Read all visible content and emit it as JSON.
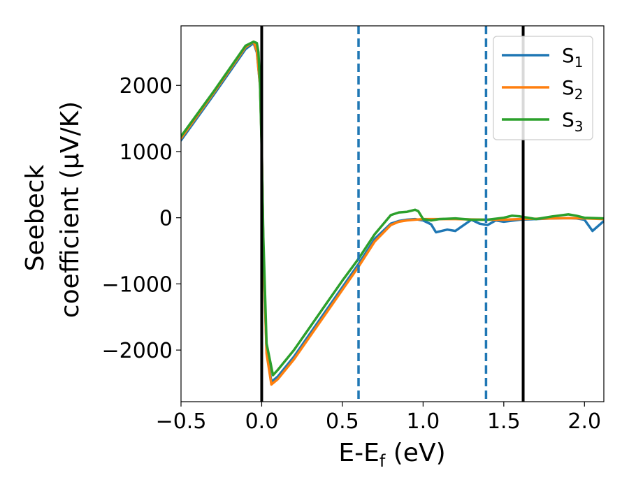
{
  "chart_data": {
    "type": "line",
    "xlabel": "E-E",
    "xlabel_sub": "f",
    "xlabel_unit": " (eV)",
    "ylabel_line1": "Seebeck",
    "ylabel_line2": "coefficient  (μV/K)",
    "xlim": [
      -0.5,
      2.12
    ],
    "ylim": [
      -2780,
      2900
    ],
    "xticks": [
      -0.5,
      0.0,
      0.5,
      1.0,
      1.5,
      2.0
    ],
    "xtick_labels": [
      "−0.5",
      "0.0",
      "0.5",
      "1.0",
      "1.5",
      "2.0"
    ],
    "yticks": [
      -2000,
      -1000,
      0,
      1000,
      2000
    ],
    "ytick_labels": [
      "−2000",
      "−1000",
      "0",
      "1000",
      "2000"
    ],
    "grid": false,
    "legend_position": "top-right",
    "vlines": [
      {
        "x": 0.0,
        "style": "solid",
        "color": "#000000"
      },
      {
        "x": 0.6,
        "style": "dashed",
        "color": "#1f77b4"
      },
      {
        "x": 1.39,
        "style": "dashed",
        "color": "#1f77b4"
      },
      {
        "x": 1.62,
        "style": "solid",
        "color": "#000000"
      }
    ],
    "series": [
      {
        "name": "S",
        "sub": "1",
        "color": "#1f77b4",
        "x": [
          -0.5,
          -0.3,
          -0.1,
          -0.05,
          -0.03,
          -0.01,
          0.0,
          0.01,
          0.03,
          0.06,
          0.1,
          0.2,
          0.3,
          0.4,
          0.5,
          0.6,
          0.7,
          0.8,
          0.85,
          0.9,
          0.95,
          1.0,
          1.05,
          1.08,
          1.15,
          1.2,
          1.3,
          1.35,
          1.4,
          1.45,
          1.5,
          1.6,
          1.7,
          1.8,
          1.9,
          1.95,
          2.0,
          2.05,
          2.12
        ],
        "y": [
          1170,
          1850,
          2550,
          2640,
          2500,
          2000,
          1100,
          -500,
          -2000,
          -2480,
          -2400,
          -2100,
          -1750,
          -1400,
          -1050,
          -700,
          -320,
          -90,
          -50,
          -30,
          -20,
          -40,
          -100,
          -220,
          -180,
          -200,
          -30,
          -90,
          -110,
          -40,
          -60,
          -30,
          -20,
          -10,
          -5,
          -10,
          -30,
          -200,
          -50
        ]
      },
      {
        "name": "S",
        "sub": "2",
        "color": "#ff7f0e",
        "x": [
          -0.5,
          -0.3,
          -0.1,
          -0.05,
          -0.03,
          -0.01,
          0.0,
          0.01,
          0.03,
          0.06,
          0.1,
          0.2,
          0.3,
          0.4,
          0.5,
          0.6,
          0.7,
          0.8,
          0.85,
          0.9,
          0.95,
          1.0,
          1.1,
          1.2,
          1.3,
          1.4,
          1.5,
          1.6,
          1.7,
          1.8,
          1.9,
          2.0,
          2.12
        ],
        "y": [
          1200,
          1880,
          2580,
          2660,
          2520,
          2000,
          1100,
          -500,
          -2050,
          -2520,
          -2440,
          -2140,
          -1790,
          -1440,
          -1090,
          -740,
          -360,
          -110,
          -60,
          -40,
          -30,
          -20,
          -20,
          -20,
          -25,
          -30,
          -30,
          -20,
          -15,
          -10,
          -5,
          -10,
          -20
        ]
      },
      {
        "name": "S",
        "sub": "3",
        "color": "#2ca02c",
        "x": [
          -0.5,
          -0.3,
          -0.1,
          -0.05,
          -0.03,
          -0.02,
          -0.01,
          0.0,
          0.01,
          0.03,
          0.07,
          0.1,
          0.2,
          0.3,
          0.4,
          0.5,
          0.6,
          0.7,
          0.8,
          0.85,
          0.9,
          0.95,
          0.97,
          1.0,
          1.05,
          1.1,
          1.2,
          1.3,
          1.4,
          1.5,
          1.55,
          1.6,
          1.7,
          1.8,
          1.9,
          1.95,
          2.0,
          2.12
        ],
        "y": [
          1230,
          1900,
          2600,
          2660,
          2640,
          2500,
          2000,
          1000,
          -300,
          -1900,
          -2380,
          -2300,
          -2000,
          -1650,
          -1300,
          -950,
          -620,
          -250,
          40,
          80,
          90,
          120,
          100,
          -20,
          -40,
          -20,
          -10,
          -30,
          -30,
          0,
          30,
          20,
          -20,
          20,
          50,
          30,
          0,
          -10
        ]
      }
    ]
  }
}
